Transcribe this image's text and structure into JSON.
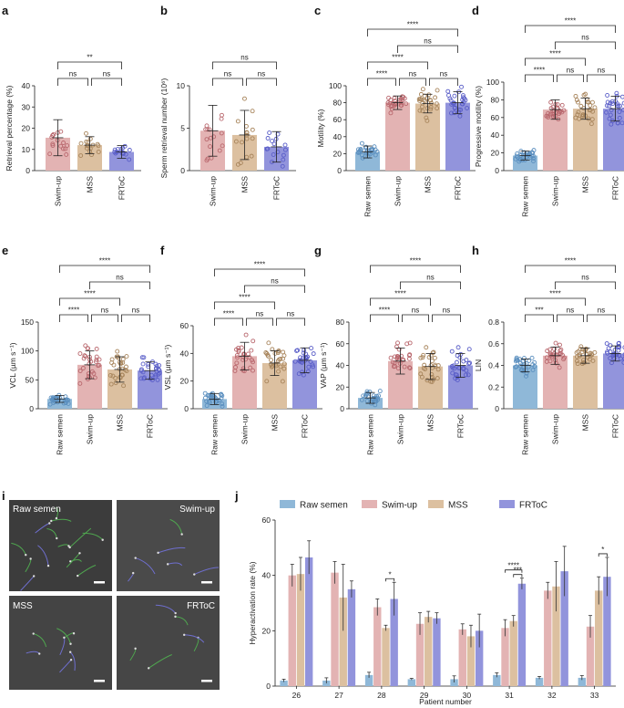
{
  "colors": {
    "raw": "#8fb8d8",
    "swim": "#e3b3b3",
    "mss": "#dcc0a0",
    "frtoc": "#9294dc",
    "rawDot": "#5b8fbf",
    "swimDot": "#b9686e",
    "mssDot": "#a8855c",
    "frtocDot": "#5a5ec8"
  },
  "chart_data": [
    {
      "panel": "a",
      "type": "bar",
      "ylabel": "Retrieval percentage (%)",
      "categories": [
        "Swim-up",
        "MSS",
        "FRToC"
      ],
      "groups": [
        "swim",
        "mss",
        "frtoc"
      ],
      "means": [
        15.5,
        12,
        8.8
      ],
      "sd": [
        8.5,
        4,
        3
      ],
      "ylim": [
        0,
        40
      ],
      "yticks": [
        0,
        10,
        20,
        30,
        40
      ],
      "npoints": 16,
      "comparisons": [
        {
          "a": 0,
          "b": 1,
          "label": "ns",
          "level": 0
        },
        {
          "a": 1,
          "b": 2,
          "label": "ns",
          "level": 0
        },
        {
          "a": 0,
          "b": 2,
          "label": "**",
          "level": 1
        }
      ]
    },
    {
      "panel": "b",
      "type": "bar",
      "ylabel": "Sperm retrieval number (10⁶)",
      "categories": [
        "Swim-up",
        "MSS",
        "FRToC"
      ],
      "groups": [
        "swim",
        "mss",
        "frtoc"
      ],
      "means": [
        4.7,
        4.2,
        2.8
      ],
      "sd": [
        3.0,
        2.9,
        1.8
      ],
      "ylim": [
        0,
        10
      ],
      "yticks": [
        0,
        5,
        10
      ],
      "npoints": 16,
      "comparisons": [
        {
          "a": 0,
          "b": 1,
          "label": "ns",
          "level": 0
        },
        {
          "a": 1,
          "b": 2,
          "label": "ns",
          "level": 0
        },
        {
          "a": 0,
          "b": 2,
          "label": "ns",
          "level": 1
        }
      ]
    },
    {
      "panel": "c",
      "type": "bar",
      "ylabel": "Motility (%)",
      "categories": [
        "Raw semen",
        "Swim-up",
        "MSS",
        "FRToC"
      ],
      "groups": [
        "raw",
        "swim",
        "mss",
        "frtoc"
      ],
      "means": [
        22,
        80,
        79,
        80
      ],
      "sd": [
        7,
        8,
        11,
        13
      ],
      "ylim": [
        0,
        100
      ],
      "yticks": [
        0,
        20,
        40,
        60,
        80,
        100
      ],
      "npoints": 28,
      "comparisons": [
        {
          "a": 0,
          "b": 1,
          "label": "****",
          "level": 0
        },
        {
          "a": 1,
          "b": 2,
          "label": "ns",
          "level": 0
        },
        {
          "a": 2,
          "b": 3,
          "label": "ns",
          "level": 0
        },
        {
          "a": 0,
          "b": 2,
          "label": "****",
          "level": 1
        },
        {
          "a": 1,
          "b": 3,
          "label": "ns",
          "level": 2
        },
        {
          "a": 0,
          "b": 3,
          "label": "****",
          "level": 3
        }
      ]
    },
    {
      "panel": "d",
      "type": "bar",
      "ylabel": "Progressive motility (%)",
      "categories": [
        "Raw semen",
        "Swim-up",
        "MSS",
        "FRToC"
      ],
      "groups": [
        "raw",
        "swim",
        "mss",
        "frtoc"
      ],
      "means": [
        17,
        69,
        70,
        70
      ],
      "sd": [
        5,
        11,
        12,
        14
      ],
      "ylim": [
        0,
        100
      ],
      "yticks": [
        0,
        20,
        40,
        60,
        80,
        100
      ],
      "npoints": 28,
      "comparisons": [
        {
          "a": 0,
          "b": 1,
          "label": "****",
          "level": 0
        },
        {
          "a": 1,
          "b": 2,
          "label": "ns",
          "level": 0
        },
        {
          "a": 2,
          "b": 3,
          "label": "ns",
          "level": 0
        },
        {
          "a": 0,
          "b": 2,
          "label": "****",
          "level": 1
        },
        {
          "a": 1,
          "b": 3,
          "label": "ns",
          "level": 2
        },
        {
          "a": 0,
          "b": 3,
          "label": "****",
          "level": 3
        }
      ]
    },
    {
      "panel": "e",
      "type": "bar",
      "ylabel": "VCL (µm s⁻¹)",
      "categories": [
        "Raw semen",
        "Swim-up",
        "MSS",
        "FRToC"
      ],
      "groups": [
        "raw",
        "swim",
        "mss",
        "frtoc"
      ],
      "means": [
        17,
        76,
        68,
        66
      ],
      "sd": [
        6,
        24,
        22,
        15
      ],
      "ylim": [
        0,
        150
      ],
      "yticks": [
        0,
        50,
        100,
        150
      ],
      "npoints": 28,
      "comparisons": [
        {
          "a": 0,
          "b": 1,
          "label": "****",
          "level": 0
        },
        {
          "a": 1,
          "b": 2,
          "label": "ns",
          "level": 0
        },
        {
          "a": 2,
          "b": 3,
          "label": "ns",
          "level": 0
        },
        {
          "a": 0,
          "b": 2,
          "label": "****",
          "level": 1
        },
        {
          "a": 1,
          "b": 3,
          "label": "ns",
          "level": 2
        },
        {
          "a": 0,
          "b": 3,
          "label": "****",
          "level": 3
        }
      ]
    },
    {
      "panel": "f",
      "type": "bar",
      "ylabel": "VSL (µm s⁻¹)",
      "categories": [
        "Raw semen",
        "Swim-up",
        "MSS",
        "FRToC"
      ],
      "groups": [
        "raw",
        "swim",
        "mss",
        "frtoc"
      ],
      "means": [
        7,
        38,
        33,
        35
      ],
      "sd": [
        4,
        10,
        9,
        9
      ],
      "ylim": [
        0,
        60
      ],
      "yticks": [
        0,
        20,
        40,
        60
      ],
      "npoints": 28,
      "comparisons": [
        {
          "a": 0,
          "b": 1,
          "label": "****",
          "level": 0
        },
        {
          "a": 1,
          "b": 2,
          "label": "ns",
          "level": 0
        },
        {
          "a": 2,
          "b": 3,
          "label": "ns",
          "level": 0
        },
        {
          "a": 0,
          "b": 2,
          "label": "****",
          "level": 1
        },
        {
          "a": 1,
          "b": 3,
          "label": "ns",
          "level": 2
        },
        {
          "a": 0,
          "b": 3,
          "label": "****",
          "level": 3
        }
      ]
    },
    {
      "panel": "g",
      "type": "bar",
      "ylabel": "VAP (µm s⁻¹)",
      "categories": [
        "Raw semen",
        "Swim-up",
        "MSS",
        "FRToC"
      ],
      "groups": [
        "raw",
        "swim",
        "mss",
        "frtoc"
      ],
      "means": [
        10,
        44,
        39,
        40
      ],
      "sd": [
        5,
        12,
        12,
        11
      ],
      "ylim": [
        0,
        80
      ],
      "yticks": [
        0,
        20,
        40,
        60,
        80
      ],
      "npoints": 28,
      "comparisons": [
        {
          "a": 0,
          "b": 1,
          "label": "****",
          "level": 0
        },
        {
          "a": 1,
          "b": 2,
          "label": "ns",
          "level": 0
        },
        {
          "a": 2,
          "b": 3,
          "label": "ns",
          "level": 0
        },
        {
          "a": 0,
          "b": 2,
          "label": "****",
          "level": 1
        },
        {
          "a": 1,
          "b": 3,
          "label": "ns",
          "level": 2
        },
        {
          "a": 0,
          "b": 3,
          "label": "****",
          "level": 3
        }
      ]
    },
    {
      "panel": "h",
      "type": "bar",
      "ylabel": "LIN",
      "categories": [
        "Raw semen",
        "Swim-up",
        "MSS",
        "FRToC"
      ],
      "groups": [
        "raw",
        "swim",
        "mss",
        "frtoc"
      ],
      "means": [
        0.4,
        0.49,
        0.49,
        0.51
      ],
      "sd": [
        0.06,
        0.08,
        0.07,
        0.07
      ],
      "ylim": [
        0,
        0.8
      ],
      "yticks": [
        0.0,
        0.2,
        0.4,
        0.6,
        0.8
      ],
      "npoints": 28,
      "comparisons": [
        {
          "a": 0,
          "b": 1,
          "label": "***",
          "level": 0
        },
        {
          "a": 1,
          "b": 2,
          "label": "ns",
          "level": 0
        },
        {
          "a": 2,
          "b": 3,
          "label": "ns",
          "level": 0
        },
        {
          "a": 0,
          "b": 2,
          "label": "****",
          "level": 1
        },
        {
          "a": 1,
          "b": 3,
          "label": "ns",
          "level": 2
        },
        {
          "a": 0,
          "b": 3,
          "label": "****",
          "level": 3
        }
      ]
    },
    {
      "panel": "j",
      "type": "bar",
      "ylabel": "Hyperactivation rate (%)",
      "xlabel": "Patient number",
      "legend": [
        "Raw semen",
        "Swim-up",
        "MSS",
        "FRToC"
      ],
      "groups": [
        "raw",
        "swim",
        "mss",
        "frtoc"
      ],
      "categories": [
        "26",
        "27",
        "28",
        "29",
        "30",
        "31",
        "32",
        "33"
      ],
      "ylim": [
        0,
        60
      ],
      "yticks": [
        0,
        20,
        40,
        60
      ],
      "series": [
        {
          "name": "Raw semen",
          "values": [
            2,
            2,
            4,
            2.5,
            2.5,
            4,
            3,
            3
          ],
          "err": [
            0.5,
            1,
            1,
            0.3,
            1.2,
            0.8,
            0.5,
            0.8
          ]
        },
        {
          "name": "Swim-up",
          "values": [
            40,
            41,
            28.5,
            22.5,
            20.5,
            21,
            34.5,
            21.5
          ],
          "err": [
            4,
            4,
            3,
            4,
            2,
            3,
            3,
            4
          ]
        },
        {
          "name": "MSS",
          "values": [
            40.5,
            32,
            21,
            25,
            18,
            23.5,
            36,
            34.5
          ],
          "err": [
            6,
            12,
            1,
            2,
            4,
            2,
            9,
            5
          ]
        },
        {
          "name": "FRToC",
          "values": [
            46.5,
            35,
            31.5,
            24.5,
            20,
            37,
            41.5,
            39.5
          ],
          "err": [
            6,
            3,
            6,
            2,
            6,
            2,
            9,
            7
          ]
        }
      ],
      "annotations": [
        {
          "category": "28",
          "a": 2,
          "b": 3,
          "label": "*"
        },
        {
          "category": "31",
          "a": 2,
          "b": 3,
          "label": "***"
        },
        {
          "category": "31",
          "a": 1,
          "b": 3,
          "label": "****"
        },
        {
          "category": "33",
          "a": 2,
          "b": 3,
          "label": "*"
        }
      ]
    }
  ],
  "labels": {
    "a": "a",
    "b": "b",
    "c": "c",
    "d": "d",
    "e": "e",
    "f": "f",
    "g": "g",
    "h": "h",
    "i": "i",
    "j": "j"
  },
  "micrographs": {
    "raw": "Raw semen",
    "swim": "Swim-up",
    "mss": "MSS",
    "frtoc": "FRToC"
  }
}
